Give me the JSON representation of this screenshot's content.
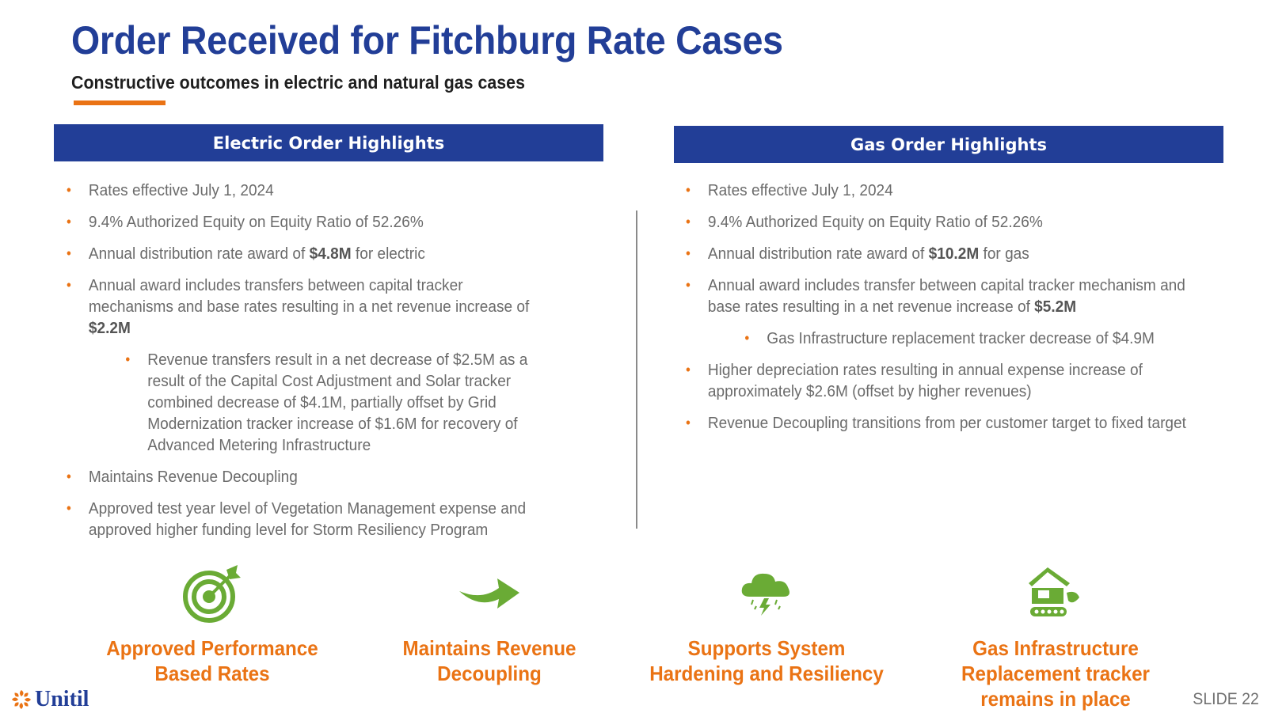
{
  "header": {
    "title": "Order Received for Fitchburg Rate Cases",
    "subtitle": "Constructive outcomes in electric and natural gas cases",
    "accent_color": "#ea7314",
    "brand_color": "#223e97"
  },
  "electric": {
    "heading": "Electric Order Highlights",
    "bullets": [
      {
        "pre": "Rates effective July 1, 2024",
        "bold": "",
        "post": ""
      },
      {
        "pre": "9.4% Authorized Equity on Equity Ratio of 52.26%",
        "bold": "",
        "post": ""
      },
      {
        "pre": "Annual distribution rate award of ",
        "bold": "$4.8M",
        "post": " for electric"
      },
      {
        "pre": "Annual award includes transfers between capital tracker mechanisms and base rates resulting in a net revenue increase of ",
        "bold": "$2.2M",
        "post": ""
      },
      {
        "pre": "Revenue transfers result in a net decrease of $2.5M as a result of the Capital Cost Adjustment and Solar tracker combined decrease of $4.1M, partially offset by Grid Modernization tracker increase of $1.6M for recovery of Advanced Metering Infrastructure",
        "bold": "",
        "post": ""
      },
      {
        "pre": "Maintains Revenue Decoupling",
        "bold": "",
        "post": ""
      },
      {
        "pre": "Approved test year level of Vegetation Management expense and approved higher funding level for Storm Resiliency Program",
        "bold": "",
        "post": ""
      }
    ]
  },
  "gas": {
    "heading": "Gas Order Highlights",
    "bullets": [
      {
        "pre": "Rates effective July 1, 2024",
        "bold": "",
        "post": ""
      },
      {
        "pre": "9.4% Authorized Equity on Equity Ratio of 52.26%",
        "bold": "",
        "post": ""
      },
      {
        "pre": "Annual distribution rate award of ",
        "bold": "$10.2M",
        "post": " for gas"
      },
      {
        "pre": "Annual award includes transfer between capital tracker mechanism and base rates resulting in a net revenue increase of ",
        "bold": "$5.2M",
        "post": ""
      },
      {
        "pre": "Gas Infrastructure replacement tracker decrease of $4.9M",
        "bold": "",
        "post": ""
      },
      {
        "pre": "Higher depreciation rates resulting in annual expense increase of approximately $2.6M (offset by higher revenues)",
        "bold": "",
        "post": ""
      },
      {
        "pre": "Revenue Decoupling transitions from per customer target to fixed target",
        "bold": "",
        "post": ""
      }
    ]
  },
  "features": [
    {
      "icon": "target-icon",
      "line1": "Approved Performance",
      "line2": "Based Rates",
      "line3": ""
    },
    {
      "icon": "arrow-right-icon",
      "line1": "Maintains Revenue",
      "line2": "Decoupling",
      "line3": ""
    },
    {
      "icon": "storm-cloud-icon",
      "line1": "Supports System",
      "line2": "Hardening and Resiliency",
      "line3": ""
    },
    {
      "icon": "excavator-icon",
      "line1": "Gas Infrastructure",
      "line2": "Replacement tracker",
      "line3": "remains in place"
    }
  ],
  "icon_color": "#6aab35",
  "footer": {
    "logo_text": "Unitil",
    "slide_label": "SLIDE 22"
  }
}
